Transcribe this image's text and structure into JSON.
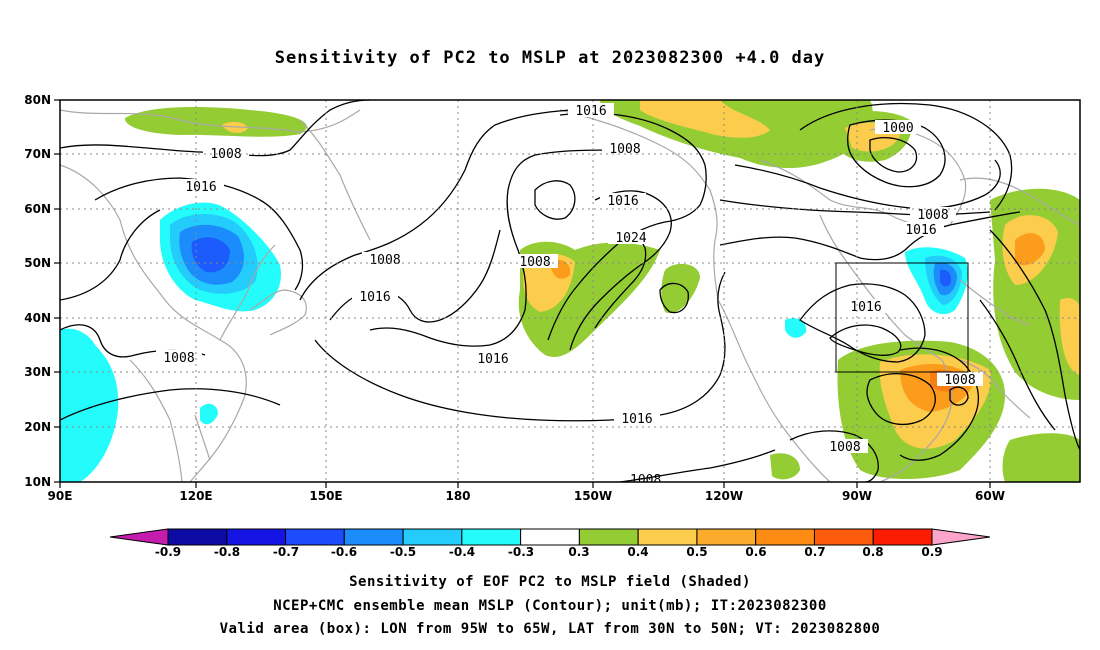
{
  "title": "Sensitivity of PC2 to MSLP at 2023082300 +4.0 day",
  "map": {
    "lat_labels": [
      "80N",
      "70N",
      "60N",
      "50N",
      "40N",
      "30N",
      "20N",
      "10N"
    ],
    "lon_labels": [
      "90E",
      "120E",
      "150E",
      "180",
      "150W",
      "120W",
      "90W",
      "60W"
    ],
    "contour_labels": [
      "1016",
      "1008",
      "1000",
      "1008",
      "1016",
      "1016",
      "1024",
      "1008",
      "1008",
      "1016",
      "1016",
      "1016",
      "1008",
      "1008",
      "1016",
      "1008",
      "1016",
      "1008"
    ],
    "valid_box": {
      "lon_min": -95,
      "lon_max": -65,
      "lat_min": 30,
      "lat_max": 50
    },
    "colors": {
      "green": "#94cc34",
      "yellow": "#fccc4c",
      "orange": "#fc9c1c",
      "dkorange": "#fc7c14",
      "cyan": "#24fcfc",
      "ltblue": "#24ccfc",
      "midblue": "#1c8cfc",
      "blue": "#1c5cfc"
    }
  },
  "colorbar": {
    "labels": [
      "-0.9",
      "-0.8",
      "-0.7",
      "-0.6",
      "-0.5",
      "-0.4",
      "-0.3",
      "0.3",
      "0.4",
      "0.5",
      "0.6",
      "0.7",
      "0.8",
      "0.9"
    ],
    "colors": [
      "#0c0ca4",
      "#1414e4",
      "#1c4cfc",
      "#1c8cfc",
      "#24ccfc",
      "#24fcfc",
      "#ffffff",
      "#94cc34",
      "#fccc4c",
      "#fcac2c",
      "#fc8c14",
      "#fc5c0c",
      "#fc1c04"
    ],
    "low_end_color": "#c41cac",
    "high_end_color": "#fca4cc"
  },
  "captions": {
    "line1": "Sensitivity of EOF PC2 to MSLP field (Shaded)",
    "line2": "NCEP+CMC ensemble mean MSLP (Contour); unit(mb); IT:2023082300",
    "line3": "Valid area (box): LON from 95W to 65W, LAT from 30N to 50N; VT: 2023082800"
  }
}
